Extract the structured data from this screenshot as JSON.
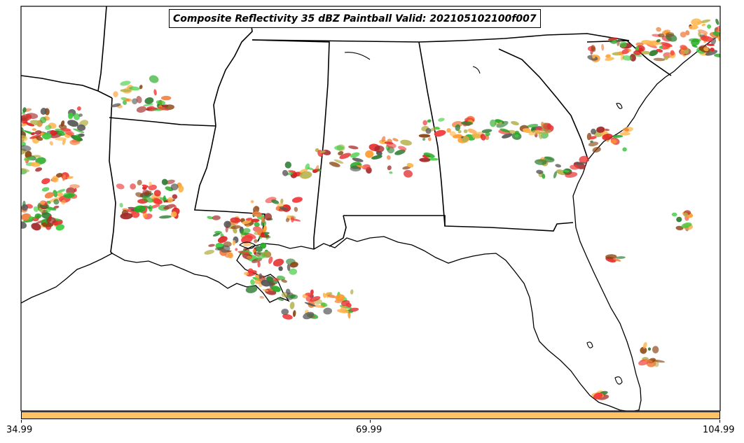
{
  "title": "Composite Reflectivity 35 dBZ Paintball Valid: 202105102100f007",
  "colorbar": {
    "color": "#FFC366",
    "ticks": [
      "34.99",
      "69.99",
      "104.99"
    ]
  },
  "colors": {
    "member_palette": [
      "#F23A3A",
      "#3CCB3C",
      "#A52A2A",
      "#FF9A2E",
      "#B4B04A",
      "#2E7D32",
      "#F08040",
      "#FFB347",
      "#555555",
      "#8B4513",
      "#22AA22",
      "#E02020"
    ]
  },
  "map": {
    "region": "Southeastern United States / Gulf Coast",
    "features": [
      "coastline",
      "state-borders",
      "precipitation-paintball"
    ]
  }
}
